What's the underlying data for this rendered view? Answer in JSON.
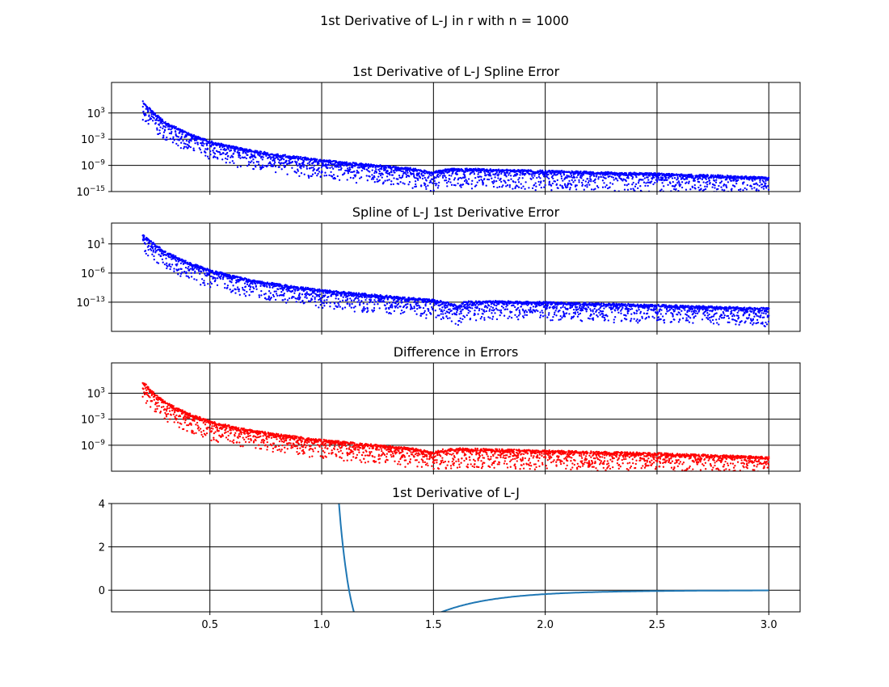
{
  "figure": {
    "suptitle": "1st Derivative of L-J in  r with n = 1000"
  },
  "chart_data": [
    {
      "type": "scatter",
      "title": "1st Derivative of L-J Spline Error",
      "yscale": "log",
      "ylim": [
        "1e-15",
        "1e10"
      ],
      "yticks": [
        {
          "base": "10",
          "exp": "−15"
        },
        {
          "base": "10",
          "exp": "−9"
        },
        {
          "base": "10",
          "exp": "−3"
        },
        {
          "base": "10",
          "exp": "3"
        }
      ],
      "ytick_exponents": [
        -15,
        -9,
        -3,
        3
      ],
      "xlim": [
        0.06,
        3.14
      ],
      "color": "#0000ff",
      "grid": true,
      "trend_log10": [
        {
          "x": 0.2,
          "y": 5.5
        },
        {
          "x": 0.25,
          "y": 3.0
        },
        {
          "x": 0.3,
          "y": 0.8
        },
        {
          "x": 0.4,
          "y": -1.7
        },
        {
          "x": 0.5,
          "y": -3.6
        },
        {
          "x": 0.6,
          "y": -4.8
        },
        {
          "x": 0.7,
          "y": -5.8
        },
        {
          "x": 0.8,
          "y": -6.6
        },
        {
          "x": 1.0,
          "y": -7.9
        },
        {
          "x": 1.2,
          "y": -8.9
        },
        {
          "x": 1.4,
          "y": -9.8
        },
        {
          "x": 1.47,
          "y": -10.4
        },
        {
          "x": 1.5,
          "y": -10.8
        },
        {
          "x": 1.53,
          "y": -10.2
        },
        {
          "x": 1.6,
          "y": -9.9
        },
        {
          "x": 1.7,
          "y": -10.0
        },
        {
          "x": 2.0,
          "y": -10.4
        },
        {
          "x": 2.5,
          "y": -11.0
        },
        {
          "x": 3.0,
          "y": -11.9
        }
      ]
    },
    {
      "type": "scatter",
      "title": "Spline of L-J 1st Derivative Error",
      "yscale": "log",
      "ylim": [
        "1e-20",
        "1e6"
      ],
      "yticks": [
        {
          "base": "10",
          "exp": "−13"
        },
        {
          "base": "10",
          "exp": "−6"
        },
        {
          "base": "10",
          "exp": "1"
        }
      ],
      "ytick_exponents": [
        -13,
        -6,
        1
      ],
      "xlim": [
        0.06,
        3.14
      ],
      "color": "#0000ff",
      "grid": true,
      "trend_log10": [
        {
          "x": 0.2,
          "y": 3.0
        },
        {
          "x": 0.25,
          "y": 1.0
        },
        {
          "x": 0.3,
          "y": -1.0
        },
        {
          "x": 0.4,
          "y": -3.5
        },
        {
          "x": 0.5,
          "y": -5.4
        },
        {
          "x": 0.7,
          "y": -8.0
        },
        {
          "x": 1.0,
          "y": -10.2
        },
        {
          "x": 1.3,
          "y": -11.7
        },
        {
          "x": 1.5,
          "y": -12.6
        },
        {
          "x": 1.58,
          "y": -13.3
        },
        {
          "x": 1.61,
          "y": -14.2
        },
        {
          "x": 1.64,
          "y": -13.0
        },
        {
          "x": 1.8,
          "y": -12.9
        },
        {
          "x": 2.0,
          "y": -13.1
        },
        {
          "x": 2.5,
          "y": -13.8
        },
        {
          "x": 3.0,
          "y": -14.6
        }
      ]
    },
    {
      "type": "scatter",
      "title": "Difference in Errors",
      "yscale": "log",
      "ylim": [
        "1e-15",
        "1e10"
      ],
      "yticks": [
        {
          "base": "10",
          "exp": "−9"
        },
        {
          "base": "10",
          "exp": "−3"
        },
        {
          "base": "10",
          "exp": "3"
        }
      ],
      "ytick_exponents": [
        -9,
        -3,
        3
      ],
      "xlim": [
        0.06,
        3.14
      ],
      "color": "#ff0000",
      "grid": true,
      "trend_log10": [
        {
          "x": 0.2,
          "y": 5.5
        },
        {
          "x": 0.25,
          "y": 3.0
        },
        {
          "x": 0.3,
          "y": 0.8
        },
        {
          "x": 0.4,
          "y": -1.7
        },
        {
          "x": 0.5,
          "y": -3.6
        },
        {
          "x": 0.6,
          "y": -4.8
        },
        {
          "x": 0.7,
          "y": -5.8
        },
        {
          "x": 0.8,
          "y": -6.6
        },
        {
          "x": 1.0,
          "y": -7.9
        },
        {
          "x": 1.2,
          "y": -8.9
        },
        {
          "x": 1.4,
          "y": -9.8
        },
        {
          "x": 1.47,
          "y": -10.4
        },
        {
          "x": 1.5,
          "y": -10.8
        },
        {
          "x": 1.53,
          "y": -10.2
        },
        {
          "x": 1.6,
          "y": -9.9
        },
        {
          "x": 1.7,
          "y": -10.0
        },
        {
          "x": 2.0,
          "y": -10.4
        },
        {
          "x": 2.5,
          "y": -11.0
        },
        {
          "x": 3.0,
          "y": -11.9
        }
      ]
    },
    {
      "type": "line",
      "title": "1st Derivative of L-J",
      "yscale": "linear",
      "ylim": [
        -1.0,
        4.0
      ],
      "yticks": [
        "0",
        "2",
        "4"
      ],
      "ytick_values": [
        0,
        2,
        4
      ],
      "xlim": [
        0.06,
        3.14
      ],
      "xticks": [
        "0.5",
        "1.0",
        "1.5",
        "2.0",
        "2.5",
        "3.0"
      ],
      "xtick_values": [
        0.5,
        1.0,
        1.5,
        2.0,
        2.5,
        3.0
      ],
      "color": "#1f77b4",
      "grid": true,
      "function": "24*(2/r^13 - 1/r^7)"
    }
  ]
}
